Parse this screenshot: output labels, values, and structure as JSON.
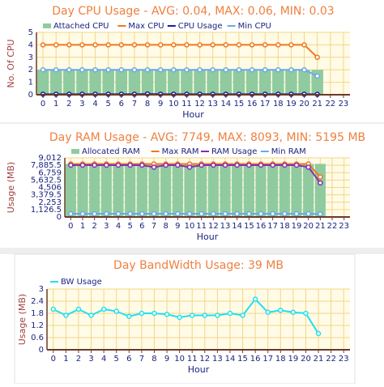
{
  "chart_data": [
    {
      "type": "bar",
      "title": "Day CPU Usage -  AVG: 0.04, MAX: 0.06, MIN: 0.03",
      "y_label": "No. Of CPU",
      "x_label": "Hour",
      "categories": [
        0,
        1,
        2,
        3,
        4,
        5,
        6,
        7,
        8,
        9,
        10,
        11,
        12,
        13,
        14,
        15,
        16,
        17,
        18,
        19,
        20,
        21,
        22,
        23
      ],
      "ylim": [
        0,
        5
      ],
      "yticks": [
        0,
        1,
        2,
        3,
        4,
        5
      ],
      "grid": true,
      "legend": "top",
      "series": [
        {
          "name": "Attached CPU",
          "type": "bar",
          "color": "#8fcb9f",
          "values": [
            2,
            2,
            2,
            2,
            2,
            2,
            2,
            2,
            2,
            2,
            2,
            2,
            2,
            2,
            2,
            2,
            2,
            2,
            2,
            2,
            2,
            2,
            null,
            null
          ]
        },
        {
          "name": "Max CPU",
          "type": "line",
          "color": "#f07820",
          "values": [
            4,
            4,
            4,
            4,
            4,
            4,
            4,
            4,
            4,
            4,
            4,
            4,
            4,
            4,
            4,
            4,
            4,
            4,
            4,
            4,
            4,
            3,
            null,
            null
          ]
        },
        {
          "name": "CPU Usage",
          "type": "line",
          "color": "#1a1aa0",
          "values": [
            0.04,
            0.04,
            0.04,
            0.04,
            0.04,
            0.04,
            0.04,
            0.04,
            0.06,
            0.04,
            0.04,
            0.04,
            0.04,
            0.04,
            0.04,
            0.04,
            0.04,
            0.04,
            0.04,
            0.04,
            0.04,
            0.03,
            null,
            null
          ]
        },
        {
          "name": "Min CPU",
          "type": "line",
          "color": "#6aa8e8",
          "values": [
            2,
            2,
            2,
            2,
            2,
            2,
            2,
            2,
            2,
            2,
            2,
            2,
            2,
            2,
            2,
            2,
            2,
            2,
            2,
            2,
            2,
            1.5,
            null,
            null
          ]
        }
      ]
    },
    {
      "type": "bar",
      "title": "Day RAM Usage -  AVG: 7749, MAX: 8093, MIN: 5195 MB",
      "y_label": "Usage (MB)",
      "x_label": "Hour",
      "categories": [
        0,
        1,
        2,
        3,
        4,
        5,
        6,
        7,
        8,
        9,
        10,
        11,
        12,
        13,
        14,
        15,
        16,
        17,
        18,
        19,
        20,
        21,
        22,
        23
      ],
      "ylim": [
        0,
        9012
      ],
      "yticks": [
        0,
        {
          "value": 1126.5,
          "label": "1,126.5"
        },
        {
          "value": 2253,
          "label": "2,253"
        },
        {
          "value": 3379.5,
          "label": "3,379.5"
        },
        {
          "value": 4506,
          "label": "4,506"
        },
        {
          "value": 5632.5,
          "label": "5,632.5"
        },
        {
          "value": 6759,
          "label": "6,759"
        },
        {
          "value": 7885.5,
          "label": "7,885.5"
        },
        {
          "value": 9012,
          "label": "9,012"
        }
      ],
      "grid": true,
      "legend": "top",
      "series": [
        {
          "name": "Allocated RAM",
          "type": "bar",
          "color": "#8fcb9f",
          "values": [
            8100,
            8100,
            8100,
            8100,
            8100,
            8100,
            8100,
            8100,
            8100,
            8100,
            8100,
            8100,
            8100,
            8100,
            8100,
            8100,
            8100,
            8100,
            8100,
            8100,
            8100,
            8100,
            null,
            null
          ]
        },
        {
          "name": "Max RAM",
          "type": "line",
          "color": "#f07820",
          "values": [
            8093,
            8093,
            8093,
            8093,
            8093,
            8093,
            8093,
            8093,
            8093,
            8093,
            8093,
            8093,
            8093,
            8093,
            8093,
            8093,
            8093,
            8093,
            8093,
            8093,
            8093,
            6100,
            null,
            null
          ]
        },
        {
          "name": "RAM Usage",
          "type": "line",
          "color": "#8a2ab0",
          "values": [
            7900,
            7900,
            7900,
            7900,
            7900,
            7900,
            7900,
            7600,
            7900,
            7900,
            7600,
            7900,
            7900,
            7900,
            7900,
            7900,
            7900,
            7900,
            7900,
            7900,
            7600,
            5195,
            null,
            null
          ]
        },
        {
          "name": "Min RAM",
          "type": "line",
          "color": "#6aa8e8",
          "values": [
            500,
            500,
            500,
            500,
            500,
            500,
            500,
            500,
            500,
            500,
            500,
            500,
            500,
            500,
            500,
            500,
            500,
            500,
            500,
            500,
            500,
            450,
            null,
            null
          ]
        }
      ]
    },
    {
      "type": "line",
      "title": "Day BandWidth Usage: 39 MB",
      "y_label": "Usage (MB)",
      "x_label": "Hour",
      "categories": [
        0,
        1,
        2,
        3,
        4,
        5,
        6,
        7,
        8,
        9,
        10,
        11,
        12,
        13,
        14,
        15,
        16,
        17,
        18,
        19,
        20,
        21,
        22,
        23
      ],
      "ylim": [
        0,
        3
      ],
      "yticks": [
        0,
        0.6,
        1.2,
        1.8,
        2.4,
        3
      ],
      "grid": true,
      "legend": "top-left",
      "series": [
        {
          "name": "BW Usage",
          "type": "line",
          "color": "#22e0f0",
          "values": [
            2.0,
            1.7,
            2.0,
            1.7,
            2.0,
            1.9,
            1.65,
            1.8,
            1.8,
            1.75,
            1.6,
            1.7,
            1.7,
            1.7,
            1.8,
            1.7,
            2.5,
            1.85,
            1.95,
            1.85,
            1.8,
            0.8,
            null,
            null
          ]
        }
      ]
    }
  ]
}
